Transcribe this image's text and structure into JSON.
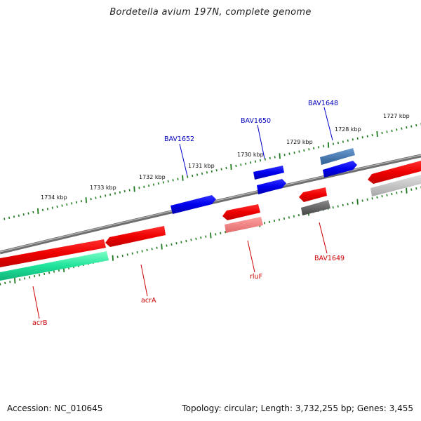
{
  "title": "Bordetella avium 197N, complete genome",
  "footer": {
    "accession": "Accession: NC_010645",
    "stats": "Topology: circular; Length: 3,732,255 bp; Genes: 3,455"
  },
  "colors": {
    "backbone": "#7a7a7a",
    "tick": "#1f7a1f",
    "forward_gene": "#0000ee",
    "forward_gene_alt": "#3f74b0",
    "reverse_gene": "#ee0000",
    "label_forward": "#0000bb",
    "label_reverse": "#cc0000"
  },
  "kbp_labels": [
    "1734 kbp",
    "1733 kbp",
    "1732 kbp",
    "1731 kbp",
    "1730 kbp",
    "1729 kbp",
    "1728 kbp",
    "1727 kbp"
  ],
  "gene_labels": {
    "bav1652": "BAV1652",
    "bav1650": "BAV1650",
    "bav1648": "BAV1648",
    "acrB": "acrB",
    "acrA": "acrA",
    "rluF": "rluF",
    "bav1649": "BAV1649"
  },
  "legend_icons": [
    "gene-arrow-icon"
  ]
}
